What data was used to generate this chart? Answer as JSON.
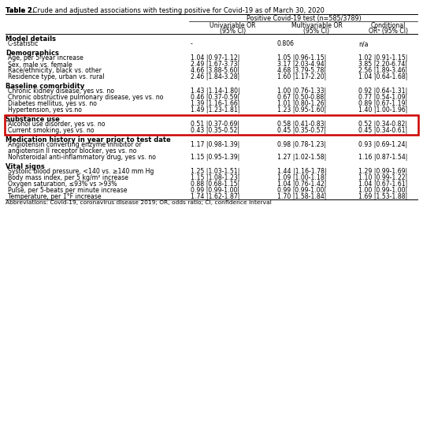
{
  "title_bold": "Table 2.",
  "title_rest": " Crude and adjusted associations with testing positive for Covid-19 as of March 30, 2020",
  "col_header_main": "Positive Covid-19 test (n=585/3789)",
  "col_sub": [
    "Univariable OR\n(95% CI)",
    "Multivariable OR\n(95% CI)",
    "Conditional\nORᵃ (95% CI)"
  ],
  "sections": [
    {
      "name": "Model details",
      "rows": [
        [
          "C-statistic",
          "-",
          "0.806",
          "n/a"
        ]
      ],
      "highlight": false,
      "gap_after": true
    },
    {
      "name": "Demographics",
      "rows": [
        [
          "Age, per 5-year increase",
          "1.04 |0.97-1.12|",
          "1.05 |0.96-1.15|",
          "1.02 |0.91-1.15|"
        ],
        [
          "Sex, male vs. female",
          "2.49 |1.67-3.73|",
          "3.17 |2.03-4.94|",
          "3.85 |2.20-6.74|"
        ],
        [
          "Race/ethnicity, black vs. other",
          "4.66 |3.88-5.60|",
          "4.68 |3.79-5.78|",
          "2.56 |1.89-3.46|"
        ],
        [
          "Residence type, urban vs. rural",
          "2.46 |1.84-3.28|",
          "1.60 |1.17-2.20|",
          "1.04 |0.64-1.68|"
        ]
      ],
      "highlight": false,
      "gap_after": true
    },
    {
      "name": "Baseline comorbidity",
      "rows": [
        [
          "Chronic kidney disease, yes vs. no",
          "1.43 |1.14-1.80|",
          "1.00 |0.76-1.33|",
          "0.92 |0.64-1.31|"
        ],
        [
          "Chronic obstructive pulmonary disease, yes vs. no",
          "0.46 |0.37-0.59|",
          "0.67 |0.50-0.88|",
          "0.77 |0.54-1.09|"
        ],
        [
          "Diabetes mellitus, yes vs. no",
          "1.39 |1.16-1.66|",
          "1.01 |0.80-1.26|",
          "0.89 |0.67-1.19|"
        ],
        [
          "Hypertension, yes vs.no",
          "1.49 |1.23-1.81|",
          "1.23 |0.95-1.60|",
          "1.40 |1.00-1.96|"
        ]
      ],
      "highlight": false,
      "gap_after": true
    },
    {
      "name": "Substance use",
      "rows": [
        [
          "Alcohol use disorder, yes vs. no",
          "0.51 |0.37-0.69|",
          "0.58 |0.41-0.83|",
          "0.52 |0.34-0.82|"
        ],
        [
          "Current smoking, yes vs. no",
          "0.43 |0.35-0.52|",
          "0.45 |0.35-0.57|",
          "0.45 |0.34-0.61|"
        ]
      ],
      "highlight": true,
      "gap_after": true
    },
    {
      "name": "Medication history in year prior to test date",
      "rows": [
        [
          "Angiotensin converting enzyme inhibitor or\nangiotensin II receptor blocker, yes vs. no",
          "1.17 |0.98-1.39|",
          "0.98 |0.78-1.23|",
          "0.93 |0.69-1.24|"
        ],
        [
          "Nonsteroidal anti-inflammatory drug, yes vs. no",
          "1.15 |0.95-1.39|",
          "1.27 |1.02-1.58|",
          "1.16 |0.87-1.54|"
        ]
      ],
      "highlight": false,
      "gap_after": true
    },
    {
      "name": "Vital signs",
      "rows": [
        [
          "Systolic blood pressure, <140 vs. ≥140 mm Hg",
          "1.25 |1.03-1.51|",
          "1.44 |1.16-1.78|",
          "1.29 |0.99-1.69|"
        ],
        [
          "Body mass index, per 5 kg/m² increase",
          "1.15 |1.08-1.23|",
          "1.09 |1.00-1.18|",
          "1.10 |0.99-1.22|"
        ],
        [
          "Oxygen saturation, ≤93% vs >93%",
          "0.88 |0.68-1.15|",
          "1.04 |0.76-1.42|",
          "1.04 |0.67-1.61|"
        ],
        [
          "Pulse, per 5-beats per minute increase",
          "0.99 |0.99-1.00|",
          "0.99 |0.99-1.00|",
          "1.00 |0.99-1.00|"
        ],
        [
          "Temperature, per 1°F increase",
          "1.74 |1.62-1.87|",
          "1.70 |1.58-1.84|",
          "1.69 |1.53-1.88|"
        ]
      ],
      "highlight": false,
      "gap_after": false
    }
  ],
  "footnote": "Abbreviations: Covid-19, coronavirus disease 2019; OR, odds ratio; CI, confidence interval",
  "highlight_border_color": "#cc0000",
  "bg_color": "#ffffff"
}
